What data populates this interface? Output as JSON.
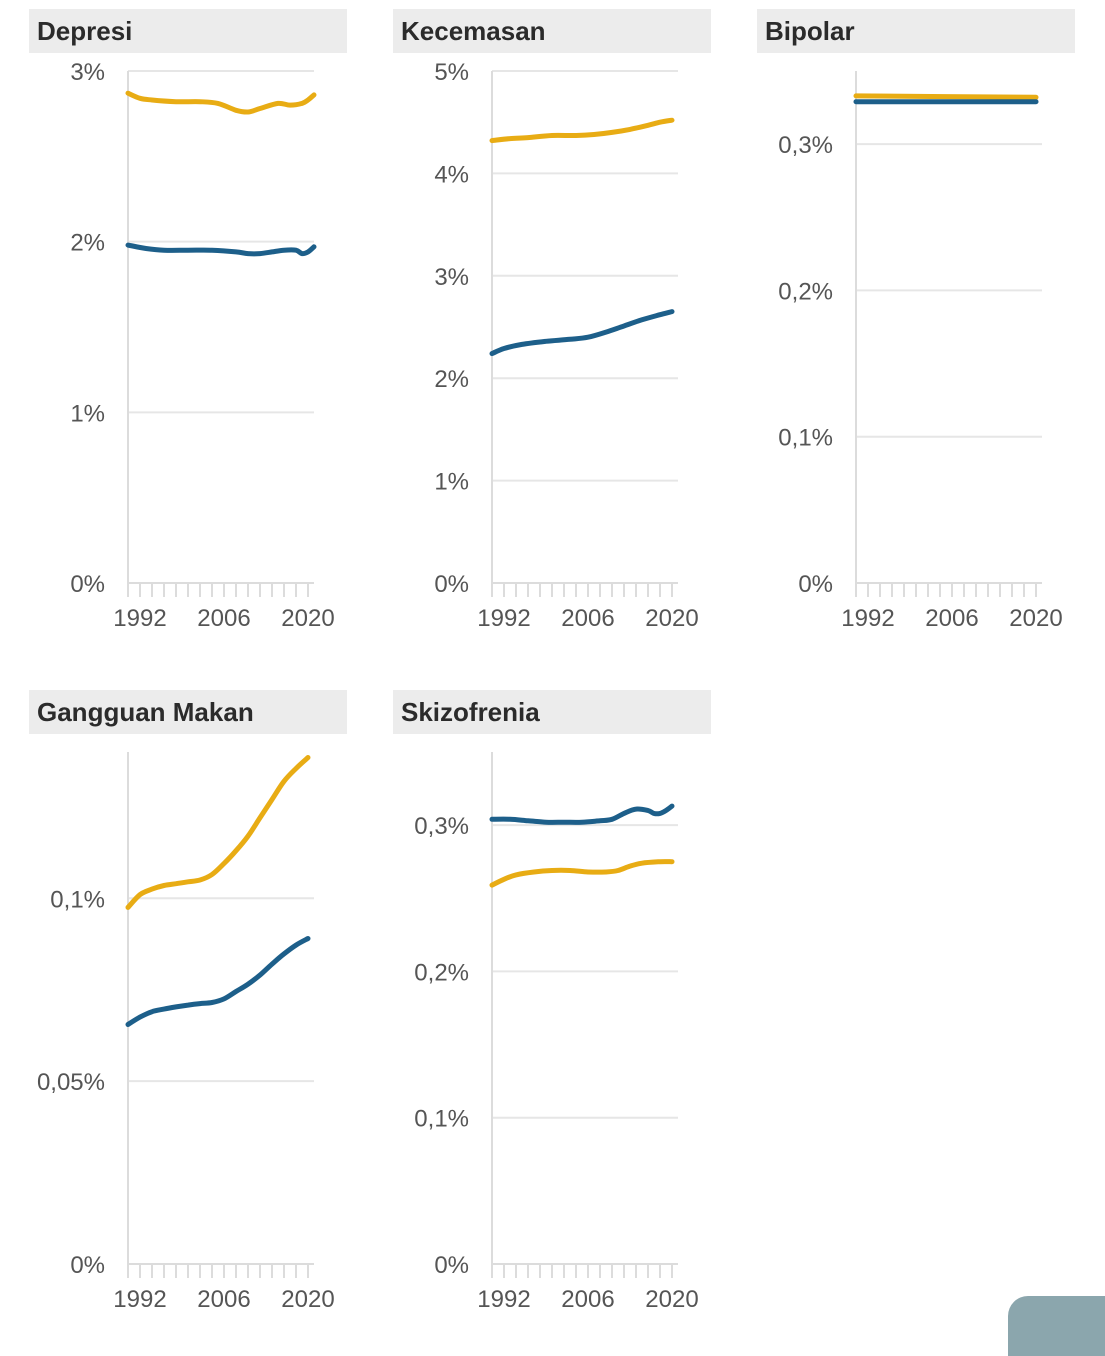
{
  "colors": {
    "series_gold": "#e8ac14",
    "series_blue": "#1d5f8a",
    "grid": "#e6e6e6",
    "axis": "#dcdcdc",
    "title_bg": "#ececec",
    "title_text": "#2b2b2b",
    "tick_text": "#555555"
  },
  "chart_data": [
    {
      "type": "line",
      "title": "Depresi",
      "xlabel": "",
      "ylabel": "",
      "x_range": [
        1990,
        2021
      ],
      "x_ticks": [
        "1992",
        "2006",
        "2020"
      ],
      "ylim": [
        0,
        3
      ],
      "y_ticks": [
        {
          "v": 0,
          "label": "0%"
        },
        {
          "v": 1,
          "label": "1%"
        },
        {
          "v": 2,
          "label": "2%"
        },
        {
          "v": 3,
          "label": "3%"
        }
      ],
      "grid": true,
      "series": [
        {
          "color": "gold",
          "x": [
            1990,
            1992,
            1994,
            1998,
            2002,
            2005,
            2008,
            2010,
            2012,
            2015,
            2017,
            2019,
            2020,
            2021
          ],
          "values": [
            2.87,
            2.84,
            2.83,
            2.82,
            2.82,
            2.81,
            2.77,
            2.76,
            2.78,
            2.81,
            2.8,
            2.81,
            2.83,
            2.86
          ]
        },
        {
          "color": "blue",
          "x": [
            1990,
            1993,
            1996,
            2000,
            2004,
            2008,
            2010,
            2012,
            2014,
            2016,
            2018,
            2019,
            2020,
            2021
          ],
          "values": [
            1.98,
            1.96,
            1.95,
            1.95,
            1.95,
            1.94,
            1.93,
            1.93,
            1.94,
            1.95,
            1.95,
            1.93,
            1.94,
            1.97
          ]
        }
      ]
    },
    {
      "type": "line",
      "title": "Kecemasan",
      "xlabel": "",
      "ylabel": "",
      "x_range": [
        1990,
        2021
      ],
      "x_ticks": [
        "1992",
        "2006",
        "2020"
      ],
      "ylim": [
        0,
        5
      ],
      "y_ticks": [
        {
          "v": 0,
          "label": "0%"
        },
        {
          "v": 1,
          "label": "1%"
        },
        {
          "v": 2,
          "label": "2%"
        },
        {
          "v": 3,
          "label": "3%"
        },
        {
          "v": 4,
          "label": "4%"
        },
        {
          "v": 5,
          "label": "5%"
        }
      ],
      "grid": true,
      "series": [
        {
          "color": "gold",
          "x": [
            1990,
            1993,
            1996,
            2000,
            2004,
            2007,
            2010,
            2013,
            2016,
            2018,
            2020
          ],
          "values": [
            4.32,
            4.34,
            4.35,
            4.37,
            4.37,
            4.38,
            4.4,
            4.43,
            4.47,
            4.5,
            4.52
          ]
        },
        {
          "color": "blue",
          "x": [
            1990,
            1992,
            1995,
            1999,
            2003,
            2006,
            2009,
            2012,
            2015,
            2018,
            2020
          ],
          "values": [
            2.24,
            2.29,
            2.33,
            2.36,
            2.38,
            2.4,
            2.45,
            2.51,
            2.57,
            2.62,
            2.65
          ]
        }
      ]
    },
    {
      "type": "line",
      "title": "Bipolar",
      "xlabel": "",
      "ylabel": "",
      "x_range": [
        1990,
        2021
      ],
      "x_ticks": [
        "1992",
        "2006",
        "2020"
      ],
      "ylim": [
        0,
        0.35
      ],
      "y_ticks": [
        {
          "v": 0,
          "label": "0%"
        },
        {
          "v": 0.1,
          "label": "0,1%"
        },
        {
          "v": 0.2,
          "label": "0,2%"
        },
        {
          "v": 0.3,
          "label": "0,3%"
        }
      ],
      "grid": true,
      "series": [
        {
          "color": "gold",
          "x": [
            1990,
            2020
          ],
          "values": [
            0.333,
            0.332
          ]
        },
        {
          "color": "blue",
          "x": [
            1990,
            2020
          ],
          "values": [
            0.329,
            0.329
          ]
        }
      ]
    },
    {
      "type": "line",
      "title": "Gangguan Makan",
      "xlabel": "",
      "ylabel": "",
      "x_range": [
        1990,
        2021
      ],
      "x_ticks": [
        "1992",
        "2006",
        "2020"
      ],
      "ylim": [
        0,
        0.14
      ],
      "y_ticks": [
        {
          "v": 0,
          "label": "0%"
        },
        {
          "v": 0.05,
          "label": "0,05%"
        },
        {
          "v": 0.1,
          "label": "0,1%"
        }
      ],
      "grid": true,
      "series": [
        {
          "color": "gold",
          "x": [
            1990,
            1992,
            1994,
            1996,
            1998,
            2000,
            2002,
            2004,
            2006,
            2008,
            2010,
            2012,
            2014,
            2016,
            2018,
            2020
          ],
          "values": [
            0.0975,
            0.101,
            0.1025,
            0.1035,
            0.104,
            0.1045,
            0.105,
            0.1065,
            0.1095,
            0.113,
            0.117,
            0.122,
            0.127,
            0.132,
            0.1355,
            0.1385
          ]
        },
        {
          "color": "blue",
          "x": [
            1990,
            1992,
            1994,
            1996,
            1998,
            2000,
            2002,
            2004,
            2006,
            2008,
            2010,
            2012,
            2014,
            2016,
            2018,
            2020
          ],
          "values": [
            0.0655,
            0.0675,
            0.069,
            0.0697,
            0.0703,
            0.0708,
            0.0712,
            0.0715,
            0.0725,
            0.0745,
            0.0765,
            0.079,
            0.082,
            0.0848,
            0.0872,
            0.089
          ]
        }
      ]
    },
    {
      "type": "line",
      "title": "Skizofrenia",
      "xlabel": "",
      "ylabel": "",
      "x_range": [
        1990,
        2021
      ],
      "x_ticks": [
        "1992",
        "2006",
        "2020"
      ],
      "ylim": [
        0,
        0.35
      ],
      "y_ticks": [
        {
          "v": 0,
          "label": "0%"
        },
        {
          "v": 0.1,
          "label": "0,1%"
        },
        {
          "v": 0.2,
          "label": "0,2%"
        },
        {
          "v": 0.3,
          "label": "0,3%"
        }
      ],
      "grid": true,
      "series": [
        {
          "color": "gold",
          "x": [
            1990,
            1992,
            1994,
            1997,
            2000,
            2003,
            2006,
            2009,
            2011,
            2013,
            2015,
            2018,
            2020
          ],
          "values": [
            0.259,
            0.263,
            0.266,
            0.268,
            0.269,
            0.269,
            0.268,
            0.268,
            0.269,
            0.272,
            0.274,
            0.275,
            0.275
          ]
        },
        {
          "color": "blue",
          "x": [
            1990,
            1993,
            1996,
            1999,
            2002,
            2005,
            2008,
            2010,
            2012,
            2014,
            2016,
            2017,
            2018,
            2019,
            2020
          ],
          "values": [
            0.304,
            0.304,
            0.303,
            0.302,
            0.302,
            0.302,
            0.303,
            0.304,
            0.308,
            0.311,
            0.31,
            0.308,
            0.308,
            0.31,
            0.313
          ]
        }
      ]
    }
  ]
}
